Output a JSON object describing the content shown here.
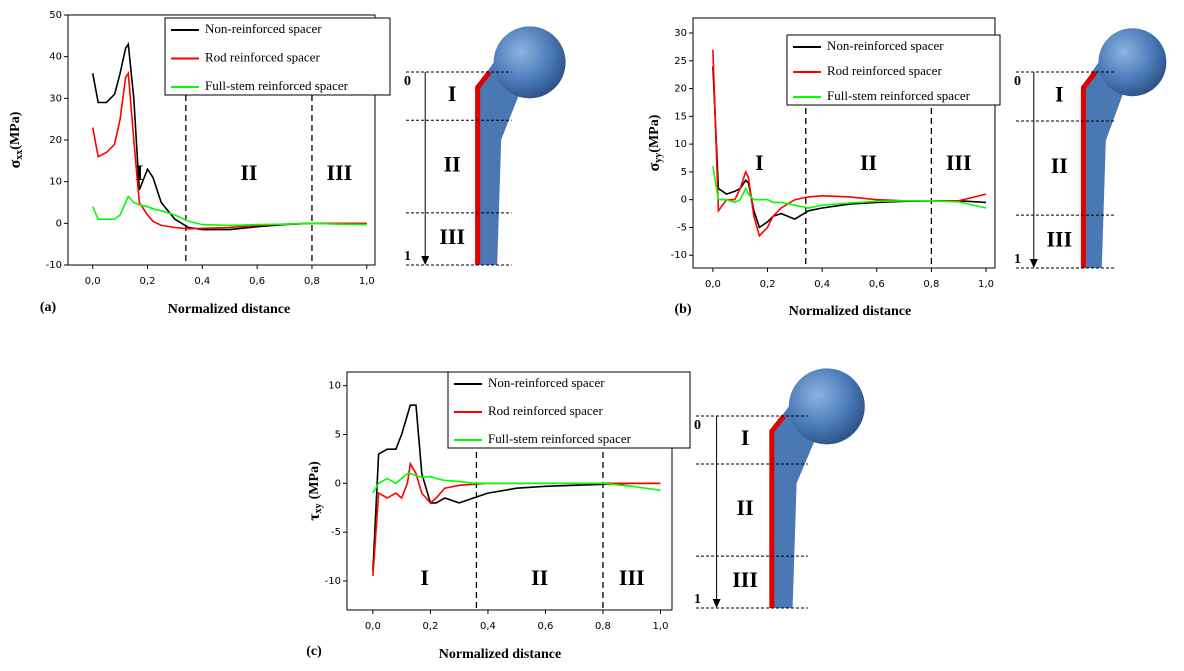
{
  "chart_data": [
    {
      "type": "line",
      "panel": "(a)",
      "ylabel": {
        "symbol": "σ",
        "subscript": "xx",
        "unit": "(MPa)"
      },
      "xlabel": "Normalized distance",
      "xlim": [
        -0.09,
        1.03
      ],
      "ylim": [
        -10,
        50
      ],
      "xticks": [
        {
          "value": 0,
          "label": "0,0"
        },
        {
          "value": 0.2,
          "label": "0,2"
        },
        {
          "value": 0.4,
          "label": "0,4"
        },
        {
          "value": 0.6,
          "label": "0,6"
        },
        {
          "value": 0.8,
          "label": "0,8"
        },
        {
          "value": 1,
          "label": "1,0"
        }
      ],
      "yticks": [
        -10,
        0,
        10,
        20,
        30,
        40,
        50
      ],
      "dividers": [
        0.34,
        0.8
      ],
      "regions": [
        "I",
        "II",
        "III"
      ],
      "x": [
        0,
        0.02,
        0.05,
        0.08,
        0.1,
        0.12,
        0.13,
        0.15,
        0.17,
        0.2,
        0.22,
        0.25,
        0.3,
        0.35,
        0.4,
        0.5,
        0.6,
        0.7,
        0.8,
        0.9,
        1.0
      ],
      "series": [
        {
          "name": "Non-reinforced spacer",
          "color": "#000000",
          "values": [
            36,
            29,
            29,
            31,
            36,
            42,
            43,
            30,
            8,
            13,
            11,
            5,
            1,
            -1,
            -1.5,
            -1.5,
            -0.8,
            -0.3,
            0,
            0,
            0
          ]
        },
        {
          "name": "Rod reinforced spacer",
          "color": "#ff0000",
          "values": [
            23,
            16,
            17,
            19,
            25,
            35,
            36,
            20,
            5,
            2,
            0.5,
            -0.5,
            -1,
            -1.3,
            -1.2,
            -1,
            -0.5,
            -0.2,
            0,
            0,
            0
          ]
        },
        {
          "name": "Full-stem reinforced spacer",
          "color": "#00ff00",
          "values": [
            4,
            1,
            1,
            1,
            2,
            5,
            6.5,
            5,
            4.5,
            4,
            3.5,
            3,
            2,
            0.5,
            -0.3,
            -0.5,
            -0.3,
            -0.2,
            0,
            -0.2,
            -0.3
          ]
        }
      ],
      "diagram": [
        "0",
        "I",
        "II",
        "III",
        "1"
      ]
    },
    {
      "type": "line",
      "panel": "(b)",
      "ylabel": {
        "symbol": "σ",
        "subscript": "yy",
        "unit": "(MPa)"
      },
      "xlabel": "Normalized distance",
      "xlim": [
        -0.073,
        1.033
      ],
      "ylim": [
        -12.3,
        32.7
      ],
      "xticks": [
        {
          "value": 0,
          "label": "0,0"
        },
        {
          "value": 0.2,
          "label": "0,2"
        },
        {
          "value": 0.4,
          "label": "0,4"
        },
        {
          "value": 0.6,
          "label": "0,6"
        },
        {
          "value": 0.8,
          "label": "0,8"
        },
        {
          "value": 1,
          "label": "1,0"
        }
      ],
      "yticks": [
        -10,
        -5,
        0,
        5,
        10,
        15,
        20,
        25,
        30
      ],
      "dividers": [
        0.34,
        0.8
      ],
      "regions": [
        "I",
        "II",
        "III"
      ],
      "x": [
        0,
        0.02,
        0.05,
        0.08,
        0.1,
        0.12,
        0.13,
        0.15,
        0.17,
        0.2,
        0.22,
        0.25,
        0.3,
        0.35,
        0.4,
        0.5,
        0.6,
        0.7,
        0.8,
        0.9,
        1.0
      ],
      "series": [
        {
          "name": "Non-reinforced spacer",
          "color": "#000000",
          "values": [
            24,
            2,
            1,
            1.5,
            2,
            3.5,
            3,
            -2,
            -5,
            -4,
            -3,
            -2.5,
            -3.5,
            -2,
            -1.5,
            -0.8,
            -0.5,
            -0.3,
            -0.2,
            -0.2,
            -0.5
          ]
        },
        {
          "name": "Rod reinforced spacer",
          "color": "#ff0000",
          "values": [
            27,
            -2,
            0,
            0,
            2,
            5,
            4,
            -3,
            -6.5,
            -5,
            -3,
            -1.5,
            0,
            0.5,
            0.7,
            0.5,
            0,
            -0.2,
            -0.2,
            -0.2,
            1
          ]
        },
        {
          "name": "Full-stem reinforced spacer",
          "color": "#00ff00",
          "values": [
            6,
            0,
            0,
            -0.5,
            0,
            2,
            1,
            0,
            0,
            0,
            -0.5,
            -0.5,
            -1,
            -1.5,
            -1,
            -0.6,
            -0.3,
            -0.2,
            -0.2,
            -0.4,
            -1.5
          ]
        }
      ],
      "diagram": [
        "0",
        "I",
        "II",
        "III",
        "1"
      ]
    },
    {
      "type": "line",
      "panel": "(c)",
      "ylabel": {
        "symbol": "τ",
        "subscript": "xy",
        "unit": "(MPa)"
      },
      "xlabel": "Normalized distance",
      "xlim": [
        -0.09,
        1.04
      ],
      "ylim": [
        -12.97,
        11.4
      ],
      "xticks": [
        {
          "value": 0,
          "label": "0,0"
        },
        {
          "value": 0.2,
          "label": "0,2"
        },
        {
          "value": 0.4,
          "label": "0,4"
        },
        {
          "value": 0.6,
          "label": "0,6"
        },
        {
          "value": 0.8,
          "label": "0,8"
        },
        {
          "value": 1,
          "label": "1,0"
        }
      ],
      "yticks": [
        -10,
        -5,
        0,
        5,
        10
      ],
      "dividers": [
        0.36,
        0.8
      ],
      "regions": [
        "I",
        "II",
        "III"
      ],
      "x": [
        0,
        0.02,
        0.05,
        0.08,
        0.1,
        0.12,
        0.13,
        0.15,
        0.17,
        0.2,
        0.22,
        0.25,
        0.3,
        0.35,
        0.4,
        0.5,
        0.6,
        0.7,
        0.8,
        0.9,
        1.0
      ],
      "series": [
        {
          "name": "Non-reinforced spacer",
          "color": "#000000",
          "values": [
            -9,
            3,
            3.5,
            3.5,
            5,
            7,
            8,
            8,
            1,
            -2,
            -2,
            -1.5,
            -2,
            -1.5,
            -1,
            -0.5,
            -0.3,
            -0.2,
            -0.1,
            0,
            0
          ]
        },
        {
          "name": "Rod reinforced spacer",
          "color": "#ff0000",
          "values": [
            -9.5,
            -1,
            -1.5,
            -1,
            -1.5,
            0,
            2,
            1,
            -1,
            -2,
            -1.5,
            -0.5,
            -0.2,
            -0.1,
            0,
            0,
            0,
            0,
            0,
            0,
            0
          ]
        },
        {
          "name": "Full-stem reinforced spacer",
          "color": "#00ff00",
          "values": [
            -1,
            0,
            0.5,
            0,
            0.5,
            1,
            1,
            0.8,
            0.6,
            0.7,
            0.5,
            0.3,
            0.2,
            0,
            0,
            0,
            0,
            0,
            0,
            -0.3,
            -0.7
          ]
        }
      ],
      "diagram": [
        "0",
        "I",
        "II",
        "III",
        "1"
      ]
    }
  ]
}
